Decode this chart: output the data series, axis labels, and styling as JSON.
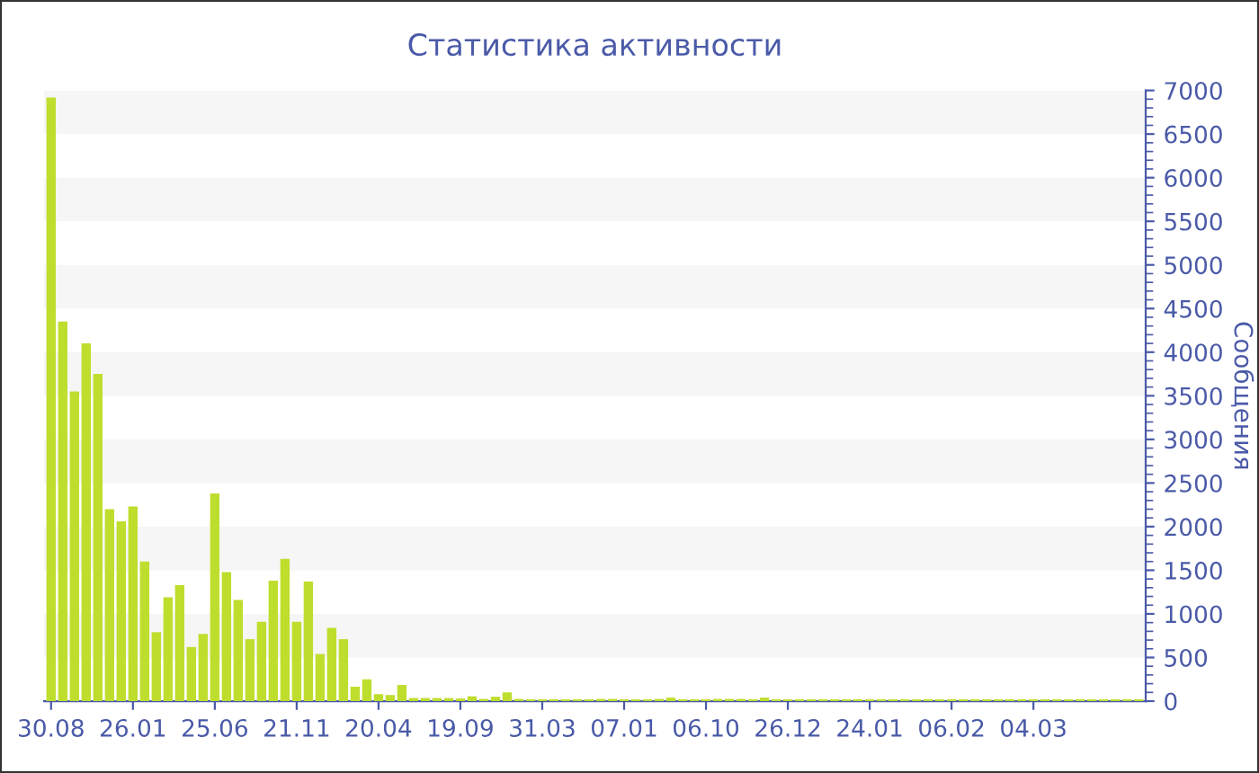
{
  "chart_data": {
    "type": "bar",
    "title": "Статистика активности",
    "ylabel": "Сообщения",
    "categories": [
      "30.08",
      null,
      null,
      null,
      null,
      null,
      null,
      "26.01",
      null,
      null,
      null,
      null,
      null,
      null,
      "25.06",
      null,
      null,
      null,
      null,
      null,
      null,
      "21.11",
      null,
      null,
      null,
      null,
      null,
      null,
      "20.04",
      null,
      null,
      null,
      null,
      null,
      null,
      "19.09",
      null,
      null,
      null,
      null,
      null,
      null,
      "31.03",
      null,
      null,
      null,
      null,
      null,
      null,
      "07.01",
      null,
      null,
      null,
      null,
      null,
      null,
      "06.10",
      null,
      null,
      null,
      null,
      null,
      null,
      "26.12",
      null,
      null,
      null,
      null,
      null,
      null,
      "24.01",
      null,
      null,
      null,
      null,
      null,
      null,
      "06.02",
      null,
      null,
      null,
      null,
      null,
      null,
      "04.03",
      null,
      null,
      null,
      null,
      null,
      null,
      null,
      null,
      null
    ],
    "values": [
      6920,
      4350,
      3550,
      4100,
      3750,
      2200,
      2060,
      2230,
      1600,
      790,
      1190,
      1330,
      620,
      770,
      2380,
      1480,
      1160,
      710,
      910,
      1380,
      1630,
      910,
      1370,
      540,
      840,
      710,
      165,
      250,
      80,
      70,
      185,
      35,
      35,
      35,
      35,
      30,
      55,
      25,
      50,
      100,
      25,
      20,
      20,
      20,
      20,
      20,
      20,
      25,
      25,
      20,
      20,
      20,
      25,
      40,
      20,
      20,
      20,
      25,
      25,
      25,
      20,
      40,
      20,
      20,
      20,
      20,
      20,
      20,
      20,
      20,
      20,
      20,
      20,
      20,
      20,
      20,
      20,
      20,
      20,
      20,
      20,
      20,
      20,
      20,
      20,
      20,
      20,
      20,
      20,
      20,
      20,
      20,
      20,
      20
    ],
    "color": "#bede2e",
    "ylim": [
      0,
      7000
    ],
    "yticks": [
      0,
      500,
      1000,
      1500,
      2000,
      2500,
      3000,
      3500,
      4000,
      4500,
      5000,
      5500,
      6000,
      6500,
      7000
    ],
    "bands": [
      {
        "axis": "y",
        "from": 500,
        "to": 1000,
        "color": "#f6f6f6"
      },
      {
        "axis": "y",
        "from": 1500,
        "to": 2000,
        "color": "#f6f6f6"
      },
      {
        "axis": "y",
        "from": 2500,
        "to": 3000,
        "color": "#f6f6f6"
      },
      {
        "axis": "y",
        "from": 3500,
        "to": 4000,
        "color": "#f6f6f6"
      },
      {
        "axis": "y",
        "from": 4500,
        "to": 5000,
        "color": "#f6f6f6"
      },
      {
        "axis": "y",
        "from": 5500,
        "to": 6000,
        "color": "#f6f6f6"
      },
      {
        "axis": "y",
        "from": 6500,
        "to": 7000,
        "color": "#f6f6f6"
      }
    ],
    "legend": false
  }
}
